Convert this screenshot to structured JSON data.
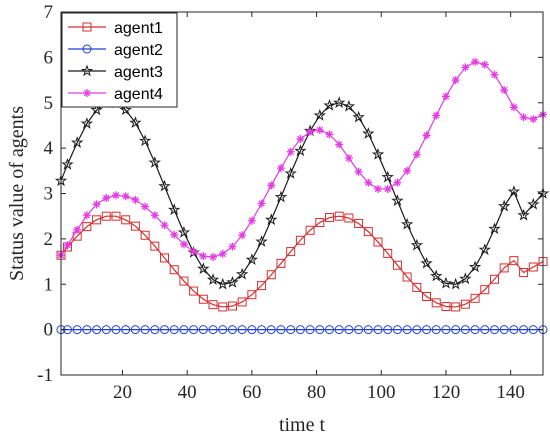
{
  "chart_data": {
    "type": "line",
    "title": "",
    "xlabel": "time t",
    "ylabel": "Status value of agents",
    "xlim": [
      1,
      150
    ],
    "ylim": [
      -1,
      7
    ],
    "xticks": [
      20,
      40,
      60,
      80,
      100,
      120,
      140
    ],
    "yticks": [
      -1,
      0,
      1,
      2,
      3,
      4,
      5,
      6,
      7
    ],
    "grid": false,
    "legend_position": "top-left",
    "x": [
      1,
      3,
      6,
      9,
      12,
      15,
      18,
      21,
      24,
      27,
      30,
      33,
      36,
      39,
      42,
      45,
      48,
      51,
      54,
      57,
      60,
      63,
      66,
      69,
      72,
      75,
      78,
      81,
      84,
      87,
      90,
      93,
      96,
      99,
      102,
      105,
      108,
      111,
      114,
      117,
      120,
      123,
      126,
      129,
      132,
      135,
      138,
      141,
      144,
      147,
      150
    ],
    "series": [
      {
        "name": "agent1",
        "color": "#d62f2f",
        "marker": "square",
        "values": [
          1.64,
          1.82,
          2.06,
          2.27,
          2.42,
          2.5,
          2.5,
          2.42,
          2.28,
          2.08,
          1.84,
          1.58,
          1.32,
          1.07,
          0.85,
          0.67,
          0.55,
          0.5,
          0.52,
          0.61,
          0.77,
          0.97,
          1.21,
          1.46,
          1.72,
          1.97,
          2.19,
          2.36,
          2.47,
          2.5,
          2.46,
          2.34,
          2.16,
          1.93,
          1.68,
          1.42,
          1.16,
          0.93,
          0.73,
          0.59,
          0.51,
          0.5,
          0.56,
          0.69,
          0.88,
          1.11,
          1.36,
          1.52,
          1.26,
          1.38,
          1.5
        ]
      },
      {
        "name": "agent2",
        "color": "#1f3fd6",
        "marker": "circle",
        "values": [
          0,
          0,
          0,
          0,
          0,
          0,
          0,
          0,
          0,
          0,
          0,
          0,
          0,
          0,
          0,
          0,
          0,
          0,
          0,
          0,
          0,
          0,
          0,
          0,
          0,
          0,
          0,
          0,
          0,
          0,
          0,
          0,
          0,
          0,
          0,
          0,
          0,
          0,
          0,
          0,
          0,
          0,
          0,
          0,
          0,
          0,
          0,
          0,
          0,
          0,
          0
        ]
      },
      {
        "name": "agent3",
        "color": "#1a1a1a",
        "marker": "star",
        "values": [
          3.28,
          3.64,
          4.12,
          4.54,
          4.84,
          5.0,
          5.0,
          4.84,
          4.56,
          4.16,
          3.68,
          3.16,
          2.64,
          2.14,
          1.7,
          1.34,
          1.1,
          1.0,
          1.04,
          1.22,
          1.54,
          1.94,
          2.42,
          2.92,
          3.44,
          3.94,
          4.38,
          4.72,
          4.94,
          5.0,
          4.92,
          4.68,
          4.32,
          3.86,
          3.36,
          2.84,
          2.32,
          1.86,
          1.46,
          1.18,
          1.02,
          1.0,
          1.12,
          1.38,
          1.76,
          2.22,
          2.72,
          3.04,
          2.52,
          2.76,
          3.0
        ]
      },
      {
        "name": "agent4",
        "color": "#e53be5",
        "marker": "asterisk",
        "values": [
          1.64,
          1.86,
          2.2,
          2.52,
          2.76,
          2.9,
          2.96,
          2.94,
          2.86,
          2.71,
          2.52,
          2.3,
          2.09,
          1.88,
          1.72,
          1.62,
          1.6,
          1.67,
          1.83,
          2.08,
          2.4,
          2.78,
          3.18,
          3.56,
          3.92,
          4.2,
          4.36,
          4.4,
          4.3,
          4.08,
          3.78,
          3.48,
          3.24,
          3.1,
          3.1,
          3.24,
          3.5,
          3.86,
          4.28,
          4.72,
          5.14,
          5.5,
          5.78,
          5.9,
          5.84,
          5.62,
          5.28,
          4.9,
          4.68,
          4.64,
          4.74
        ]
      }
    ]
  }
}
